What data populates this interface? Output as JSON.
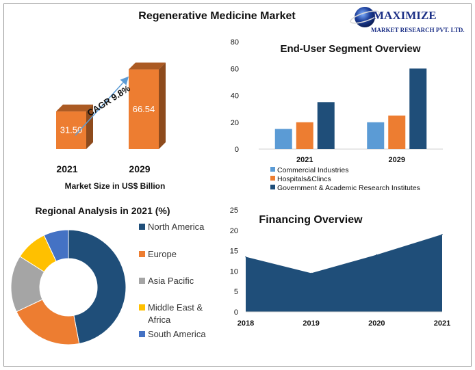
{
  "page": {
    "title": "Regenerative Medicine Market"
  },
  "logo": {
    "name": "MAXIMIZE",
    "tagline": "MARKET RESEARCH PVT. LTD."
  },
  "colors": {
    "blue": "#5B9BD5",
    "orange": "#ED7D31",
    "navy": "#1F4E79",
    "gray": "#A5A5A5",
    "yellow": "#FFC000",
    "royal": "#4472C4"
  },
  "chart_data": [
    {
      "type": "bar",
      "id": "market-size",
      "categories": [
        "2021",
        "2029"
      ],
      "values": [
        31.5,
        66.54
      ],
      "value_labels": [
        "31.50",
        "66.54"
      ],
      "xlabel": "Market Size in US$ Billion",
      "annotation": "CAGR 9.8%",
      "color": "#ED7D31",
      "style": "3d"
    },
    {
      "type": "bar",
      "id": "end-user",
      "title": "End-User Segment Overview",
      "categories": [
        "2021",
        "2029"
      ],
      "series": [
        {
          "name": "Commercial Industries",
          "values": [
            15,
            20
          ],
          "color": "#5B9BD5"
        },
        {
          "name": "Hospitals&Clincs",
          "values": [
            20,
            25
          ],
          "color": "#ED7D31"
        },
        {
          "name": "Government & Academic Research Institutes",
          "values": [
            35,
            60
          ],
          "color": "#1F4E79"
        }
      ],
      "ylim": [
        0,
        80
      ],
      "yticks": [
        "0",
        "20",
        "40",
        "60",
        "80"
      ],
      "legend": "bottom"
    },
    {
      "type": "pie",
      "id": "regional",
      "title": "Regional Analysis in 2021 (%)",
      "donut": true,
      "labels": [
        "North America",
        "Europe",
        "Asia Pacific",
        "Middle East & Africa",
        "South America"
      ],
      "legend_lines": [
        [
          "North America"
        ],
        [
          "Europe"
        ],
        [
          "Asia Pacific"
        ],
        [
          "Middle East &",
          "Africa"
        ],
        [
          "South America"
        ]
      ],
      "values": [
        47,
        21,
        16,
        9,
        7
      ],
      "colors": [
        "#1F4E79",
        "#ED7D31",
        "#A5A5A5",
        "#FFC000",
        "#4472C4"
      ],
      "legend": "right"
    },
    {
      "type": "area",
      "id": "financing",
      "title": "Financing Overview",
      "categories": [
        "2018",
        "2019",
        "2020",
        "2021"
      ],
      "values": [
        13.5,
        9.5,
        14,
        19
      ],
      "ylim": [
        0,
        25
      ],
      "yticks": [
        "0",
        "5",
        "10",
        "15",
        "20",
        "25"
      ],
      "color": "#1F4E79"
    }
  ]
}
